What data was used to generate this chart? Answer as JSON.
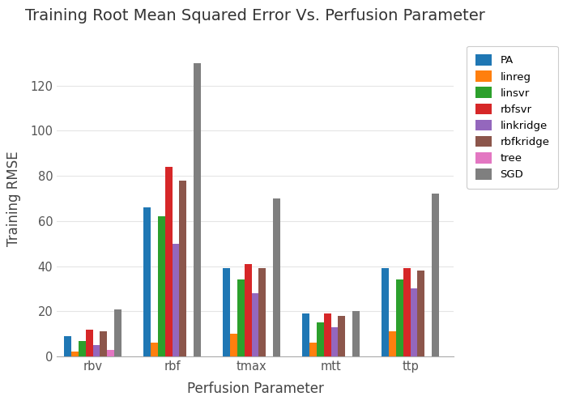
{
  "title": "Training Root Mean Squared Error Vs. Perfusion Parameter",
  "xlabel": "Perfusion Parameter",
  "ylabel": "Training RMSE",
  "categories": [
    "rbv",
    "rbf",
    "tmax",
    "mtt",
    "ttp"
  ],
  "series": {
    "PA": [
      9,
      66,
      39,
      19,
      39
    ],
    "linreg": [
      2,
      6,
      10,
      6,
      11
    ],
    "linsvr": [
      7,
      62,
      34,
      15,
      34
    ],
    "rbfsvr": [
      12,
      84,
      41,
      19,
      39
    ],
    "linkridge": [
      5,
      50,
      28,
      13,
      30
    ],
    "rbfkridge": [
      11,
      78,
      39,
      18,
      38
    ],
    "tree": [
      3,
      0,
      0,
      0,
      0
    ],
    "SGD": [
      21,
      130,
      70,
      20,
      72
    ]
  },
  "colors": {
    "PA": "#1f77b4",
    "linreg": "#ff7f0e",
    "linsvr": "#2ca02c",
    "rbfsvr": "#d62728",
    "linkridge": "#9467bd",
    "rbfkridge": "#8c564b",
    "tree": "#e377c2",
    "SGD": "#7f7f7f"
  },
  "ylim": [
    0,
    140
  ],
  "yticks": [
    0,
    20,
    40,
    60,
    80,
    100,
    120
  ],
  "bg_color": "#ffffff",
  "plot_bg_color": "#ffffff",
  "grid_color": "#e5e5e5",
  "title_fontsize": 14,
  "axis_label_fontsize": 12
}
